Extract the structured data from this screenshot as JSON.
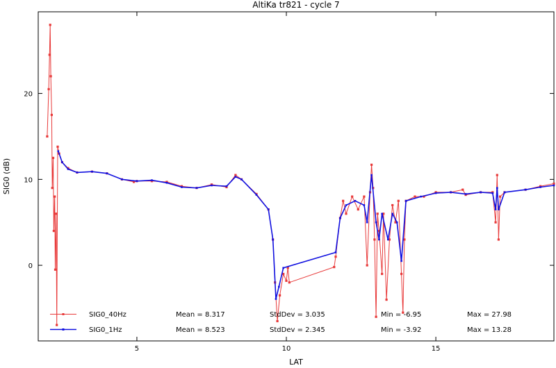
{
  "chart_data": {
    "type": "line",
    "title": "AltiKa tr821 - cycle 7",
    "xlabel": "LAT",
    "ylabel": "SIG0 (dB)",
    "xlim": [
      1.7,
      18.95
    ],
    "ylim": [
      -8.8,
      29.5
    ],
    "xticks": [
      5,
      10,
      15
    ],
    "yticks": [
      0,
      10,
      20
    ],
    "grid": false,
    "legend_position": "bottom",
    "colors": {
      "sig0_40hz": "#e83a3a",
      "sig0_1hz": "#1010e0",
      "axis": "#000000"
    },
    "series": [
      {
        "name": "SIG0_40Hz",
        "stats": {
          "mean": "Mean = 8.317",
          "stddev": "StdDev = 3.035",
          "min": "Min = -6.95",
          "max": "Max = 27.98"
        },
        "points": [
          [
            2.0,
            15.0
          ],
          [
            2.05,
            20.5
          ],
          [
            2.08,
            24.5
          ],
          [
            2.1,
            27.98
          ],
          [
            2.12,
            22.0
          ],
          [
            2.15,
            17.5
          ],
          [
            2.17,
            9.0
          ],
          [
            2.2,
            12.5
          ],
          [
            2.22,
            4.0
          ],
          [
            2.25,
            8.0
          ],
          [
            2.27,
            -0.5
          ],
          [
            2.3,
            6.0
          ],
          [
            2.32,
            -6.95
          ],
          [
            2.35,
            13.8
          ],
          [
            2.4,
            13.0
          ],
          [
            2.5,
            12.0
          ],
          [
            2.7,
            11.3
          ],
          [
            3.0,
            10.8
          ],
          [
            3.5,
            10.9
          ],
          [
            4.0,
            10.7
          ],
          [
            4.5,
            10.0
          ],
          [
            4.9,
            9.7
          ],
          [
            5.0,
            9.8
          ],
          [
            5.5,
            9.8
          ],
          [
            6.0,
            9.7
          ],
          [
            6.5,
            9.2
          ],
          [
            7.0,
            9.0
          ],
          [
            7.5,
            9.4
          ],
          [
            8.0,
            9.1
          ],
          [
            8.3,
            10.5
          ],
          [
            8.5,
            10.0
          ],
          [
            9.0,
            8.3
          ],
          [
            9.4,
            6.5
          ],
          [
            9.55,
            3.0
          ],
          [
            9.62,
            -2.0
          ],
          [
            9.7,
            -6.5
          ],
          [
            9.78,
            -3.5
          ],
          [
            9.9,
            -1.0
          ],
          [
            10.0,
            -1.8
          ],
          [
            10.05,
            -0.3
          ],
          [
            10.1,
            -2.0
          ],
          [
            11.6,
            -0.2
          ],
          [
            11.65,
            1.0
          ],
          [
            11.8,
            5.5
          ],
          [
            11.9,
            7.5
          ],
          [
            12.0,
            6.0
          ],
          [
            12.2,
            8.0
          ],
          [
            12.4,
            6.5
          ],
          [
            12.6,
            8.0
          ],
          [
            12.7,
            0.0
          ],
          [
            12.8,
            8.5
          ],
          [
            12.85,
            11.7
          ],
          [
            12.9,
            9.0
          ],
          [
            12.95,
            3.0
          ],
          [
            13.0,
            -6.0
          ],
          [
            13.05,
            6.0
          ],
          [
            13.1,
            4.0
          ],
          [
            13.2,
            -1.0
          ],
          [
            13.25,
            6.0
          ],
          [
            13.35,
            -4.0
          ],
          [
            13.45,
            3.0
          ],
          [
            13.55,
            7.0
          ],
          [
            13.65,
            5.0
          ],
          [
            13.75,
            7.5
          ],
          [
            13.85,
            -1.0
          ],
          [
            13.9,
            -5.5
          ],
          [
            13.95,
            3.0
          ],
          [
            14.0,
            7.5
          ],
          [
            14.3,
            8.0
          ],
          [
            14.6,
            8.0
          ],
          [
            15.0,
            8.5
          ],
          [
            15.5,
            8.5
          ],
          [
            15.9,
            8.8
          ],
          [
            16.0,
            8.2
          ],
          [
            16.5,
            8.5
          ],
          [
            16.9,
            8.5
          ],
          [
            17.0,
            5.0
          ],
          [
            17.05,
            10.5
          ],
          [
            17.1,
            3.0
          ],
          [
            17.15,
            8.0
          ],
          [
            17.3,
            8.5
          ],
          [
            18.0,
            8.8
          ],
          [
            18.5,
            9.2
          ],
          [
            18.95,
            9.5
          ]
        ]
      },
      {
        "name": "SIG0_1Hz",
        "stats": {
          "mean": "Mean = 8.523",
          "stddev": "StdDev = 2.345",
          "min": "Min = -3.92",
          "max": "Max = 13.28"
        },
        "points": [
          [
            2.37,
            13.28
          ],
          [
            2.5,
            12.0
          ],
          [
            2.7,
            11.2
          ],
          [
            3.0,
            10.8
          ],
          [
            3.5,
            10.9
          ],
          [
            4.0,
            10.7
          ],
          [
            4.5,
            10.0
          ],
          [
            5.0,
            9.8
          ],
          [
            5.5,
            9.9
          ],
          [
            6.0,
            9.6
          ],
          [
            6.5,
            9.1
          ],
          [
            7.0,
            9.0
          ],
          [
            7.5,
            9.3
          ],
          [
            8.0,
            9.2
          ],
          [
            8.3,
            10.3
          ],
          [
            8.5,
            10.0
          ],
          [
            9.0,
            8.2
          ],
          [
            9.4,
            6.5
          ],
          [
            9.55,
            3.0
          ],
          [
            9.65,
            -3.92
          ],
          [
            9.75,
            -2.5
          ],
          [
            9.9,
            -0.3
          ],
          [
            11.65,
            1.5
          ],
          [
            11.8,
            5.5
          ],
          [
            12.0,
            7.0
          ],
          [
            12.3,
            7.5
          ],
          [
            12.6,
            7.0
          ],
          [
            12.7,
            5.0
          ],
          [
            12.85,
            10.5
          ],
          [
            13.0,
            5.0
          ],
          [
            13.1,
            3.0
          ],
          [
            13.2,
            6.0
          ],
          [
            13.4,
            3.0
          ],
          [
            13.55,
            6.0
          ],
          [
            13.7,
            5.0
          ],
          [
            13.85,
            0.5
          ],
          [
            14.0,
            7.5
          ],
          [
            14.5,
            8.0
          ],
          [
            15.0,
            8.4
          ],
          [
            15.5,
            8.5
          ],
          [
            16.0,
            8.3
          ],
          [
            16.5,
            8.5
          ],
          [
            16.9,
            8.4
          ],
          [
            17.0,
            6.5
          ],
          [
            17.05,
            9.0
          ],
          [
            17.1,
            6.5
          ],
          [
            17.3,
            8.5
          ],
          [
            18.0,
            8.8
          ],
          [
            18.5,
            9.1
          ],
          [
            18.95,
            9.3
          ]
        ]
      }
    ]
  }
}
